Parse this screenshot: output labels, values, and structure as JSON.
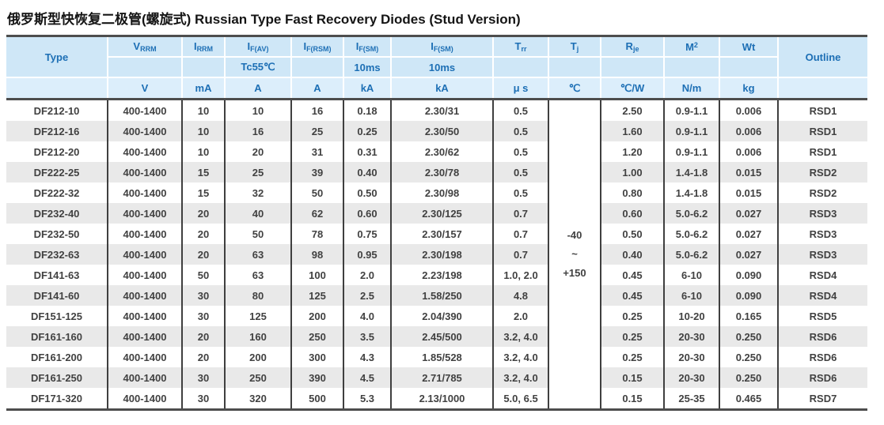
{
  "title": {
    "zh": "俄罗斯型快恢复二极管(螺旋式)",
    "en": " Russian Type Fast Recovery Diodes (Stud Version)"
  },
  "colors": {
    "header_bg": "#cfe7f7",
    "units_row_bg": "#dceefb",
    "header_text": "#1d6fb5",
    "row_alt_bg": "#e9e9e9",
    "body_text": "#414141",
    "rule_dark": "#4d4d4d"
  },
  "table": {
    "columns": [
      {
        "id": "type",
        "base": "Type",
        "sub": "",
        "sup": "",
        "cond": "",
        "unit": "",
        "width": 128,
        "span2": true
      },
      {
        "id": "vrrm",
        "base": "V",
        "sub": "RRM",
        "sup": "",
        "cond": "",
        "unit": "V",
        "width": 94,
        "span2": false
      },
      {
        "id": "irrm",
        "base": "I",
        "sub": "RRM",
        "sup": "",
        "cond": "",
        "unit": "mA",
        "width": 54,
        "span2": false
      },
      {
        "id": "if-av",
        "base": "I",
        "sub": "F(AV)",
        "sup": "",
        "cond": "Tc55℃",
        "unit": "A",
        "width": 84,
        "span2": false
      },
      {
        "id": "if-rsm",
        "base": "I",
        "sub": "F(RSM)",
        "sup": "",
        "cond": "",
        "unit": "A",
        "width": 66,
        "span2": false
      },
      {
        "id": "if-sm-1",
        "base": "I",
        "sub": "F(SM)",
        "sup": "",
        "cond": "10ms",
        "unit": "kA",
        "width": 60,
        "span2": false
      },
      {
        "id": "if-sm-2",
        "base": "I",
        "sub": "F(SM)",
        "sup": "",
        "cond": "10ms",
        "unit": "kA",
        "width": 129,
        "span2": false
      },
      {
        "id": "trr",
        "base": "T",
        "sub": "rr",
        "sup": "",
        "cond": "",
        "unit": "μ s",
        "width": 70,
        "span2": false
      },
      {
        "id": "tj",
        "base": "T",
        "sub": "j",
        "sup": "",
        "cond": "",
        "unit": "℃",
        "width": 66,
        "span2": false
      },
      {
        "id": "rje",
        "base": "R",
        "sub": "je",
        "sup": "",
        "cond": "",
        "unit": "℃/W",
        "width": 80,
        "span2": false
      },
      {
        "id": "m2",
        "base": "M",
        "sub": "",
        "sup": "2",
        "cond": "",
        "unit": "N/m",
        "width": 70,
        "span2": false
      },
      {
        "id": "wt",
        "base": "Wt",
        "sub": "",
        "sup": "",
        "cond": "",
        "unit": "kg",
        "width": 74,
        "span2": false
      },
      {
        "id": "outline",
        "base": "Outline",
        "sub": "",
        "sup": "",
        "cond": "",
        "unit": "",
        "width": 113,
        "span2": true
      }
    ],
    "tj_merged": [
      "-40",
      "~",
      "+150"
    ],
    "rows": [
      [
        "DF212-10",
        "400-1400",
        "10",
        "10",
        "16",
        "0.18",
        "2.30/31",
        "0.5",
        "2.50",
        "0.9-1.1",
        "0.006",
        "RSD1"
      ],
      [
        "DF212-16",
        "400-1400",
        "10",
        "16",
        "25",
        "0.25",
        "2.30/50",
        "0.5",
        "1.60",
        "0.9-1.1",
        "0.006",
        "RSD1"
      ],
      [
        "DF212-20",
        "400-1400",
        "10",
        "20",
        "31",
        "0.31",
        "2.30/62",
        "0.5",
        "1.20",
        "0.9-1.1",
        "0.006",
        "RSD1"
      ],
      [
        "DF222-25",
        "400-1400",
        "15",
        "25",
        "39",
        "0.40",
        "2.30/78",
        "0.5",
        "1.00",
        "1.4-1.8",
        "0.015",
        "RSD2"
      ],
      [
        "DF222-32",
        "400-1400",
        "15",
        "32",
        "50",
        "0.50",
        "2.30/98",
        "0.5",
        "0.80",
        "1.4-1.8",
        "0.015",
        "RSD2"
      ],
      [
        "DF232-40",
        "400-1400",
        "20",
        "40",
        "62",
        "0.60",
        "2.30/125",
        "0.7",
        "0.60",
        "5.0-6.2",
        "0.027",
        "RSD3"
      ],
      [
        "DF232-50",
        "400-1400",
        "20",
        "50",
        "78",
        "0.75",
        "2.30/157",
        "0.7",
        "0.50",
        "5.0-6.2",
        "0.027",
        "RSD3"
      ],
      [
        "DF232-63",
        "400-1400",
        "20",
        "63",
        "98",
        "0.95",
        "2.30/198",
        "0.7",
        "0.40",
        "5.0-6.2",
        "0.027",
        "RSD3"
      ],
      [
        "DF141-63",
        "400-1400",
        "50",
        "63",
        "100",
        "2.0",
        "2.23/198",
        "1.0, 2.0",
        "0.45",
        "6-10",
        "0.090",
        "RSD4"
      ],
      [
        "DF141-60",
        "400-1400",
        "30",
        "80",
        "125",
        "2.5",
        "1.58/250",
        "4.8",
        "0.45",
        "6-10",
        "0.090",
        "RSD4"
      ],
      [
        "DF151-125",
        "400-1400",
        "30",
        "125",
        "200",
        "4.0",
        "2.04/390",
        "2.0",
        "0.25",
        "10-20",
        "0.165",
        "RSD5"
      ],
      [
        "DF161-160",
        "400-1400",
        "20",
        "160",
        "250",
        "3.5",
        "2.45/500",
        "3.2, 4.0",
        "0.25",
        "20-30",
        "0.250",
        "RSD6"
      ],
      [
        "DF161-200",
        "400-1400",
        "20",
        "200",
        "300",
        "4.3",
        "1.85/528",
        "3.2, 4.0",
        "0.25",
        "20-30",
        "0.250",
        "RSD6"
      ],
      [
        "DF161-250",
        "400-1400",
        "30",
        "250",
        "390",
        "4.5",
        "2.71/785",
        "3.2, 4.0",
        "0.15",
        "20-30",
        "0.250",
        "RSD6"
      ],
      [
        "DF171-320",
        "400-1400",
        "30",
        "320",
        "500",
        "5.3",
        "2.13/1000",
        "5.0, 6.5",
        "0.15",
        "25-35",
        "0.465",
        "RSD7"
      ]
    ]
  }
}
